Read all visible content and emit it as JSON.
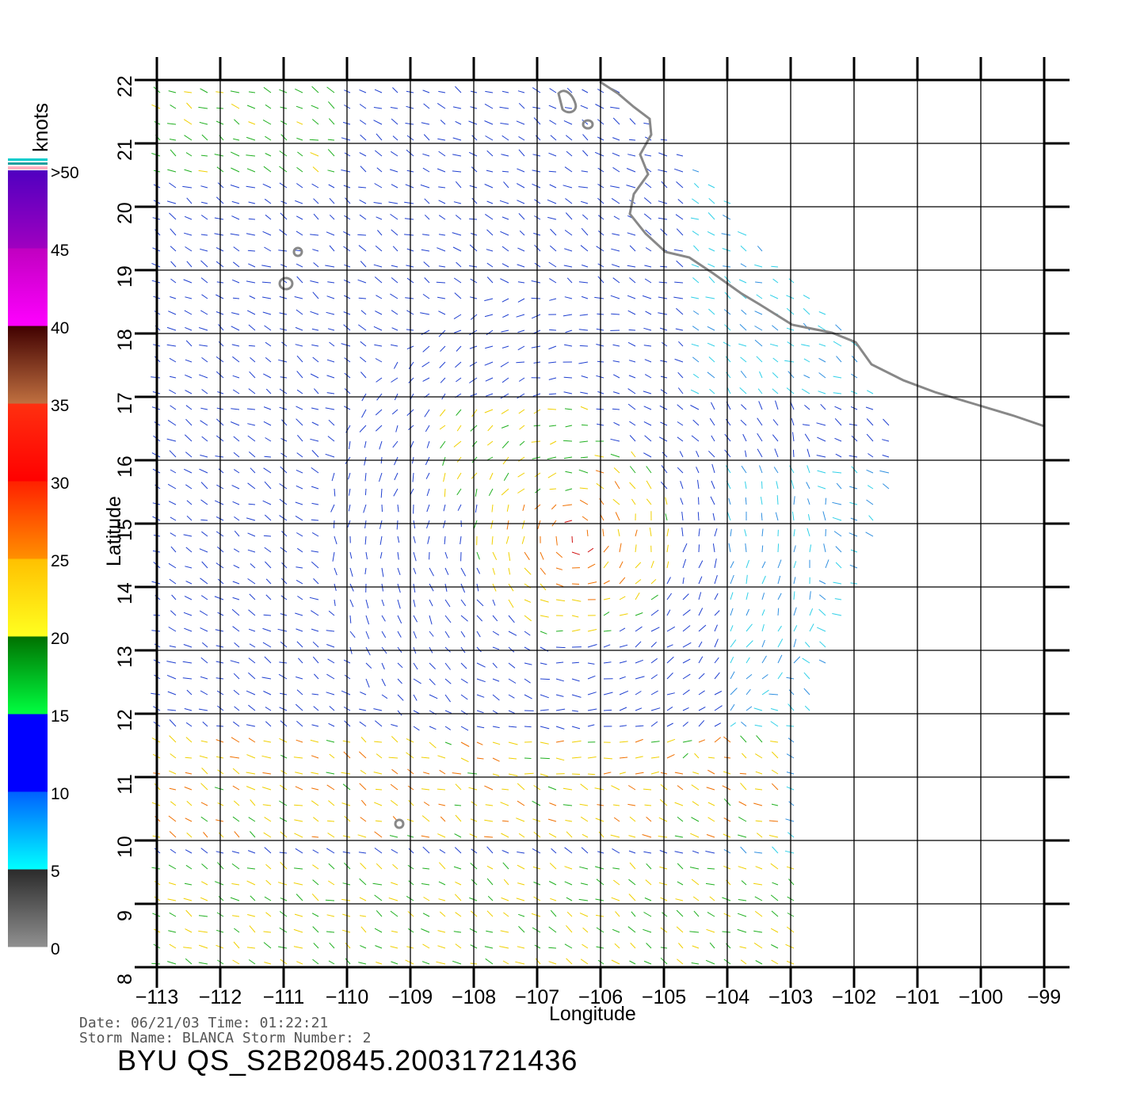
{
  "chart_data": {
    "type": "wind-vector-map",
    "xlabel": "Longitude",
    "ylabel": "Latitude",
    "xlim": [
      -113,
      -99
    ],
    "ylim": [
      8,
      22
    ],
    "x_ticks": [
      "−113",
      "−112",
      "−111",
      "−110",
      "−109",
      "−108",
      "−107",
      "−106",
      "−105",
      "−104",
      "−103",
      "−102",
      "−101",
      "−100",
      "−99"
    ],
    "y_ticks": [
      "8",
      "9",
      "10",
      "11",
      "12",
      "13",
      "14",
      "15",
      "16",
      "17",
      "18",
      "19",
      "20",
      "21",
      "22"
    ],
    "grid": true,
    "colorbar": {
      "units": "knots",
      "tick_labels": [
        "0",
        "5",
        "10",
        "15",
        "20",
        "25",
        "30",
        "35",
        "40",
        "45",
        ">50"
      ],
      "colors": [
        "#808080",
        "#00e5ff",
        "#0000ff",
        "#00ff00",
        "#ffff00",
        "#ff8c00",
        "#ff0000",
        "#a0522d",
        "#ff00ff",
        "#6a0dad"
      ]
    },
    "wind_field": {
      "swath_east_edge_lon": [
        [
          22,
          -105.8
        ],
        [
          18,
          -102
        ],
        [
          16,
          -101.2
        ],
        [
          12,
          -102.7
        ],
        [
          8,
          -102.8
        ]
      ],
      "storm_center": {
        "lat": 14.8,
        "lon": -106.4
      },
      "high_wind_bands": [
        "storm core near 14.5–15.5N 107–105.5W",
        "band along 10–11.5N 112–103W"
      ]
    }
  },
  "info": {
    "date_line": "Date: 06/21/03   Time: 01:22:21",
    "storm_line": "Storm Name: BLANCA   Storm Number: 2",
    "title": "BYU  QS_S2B20845.20031721436"
  }
}
